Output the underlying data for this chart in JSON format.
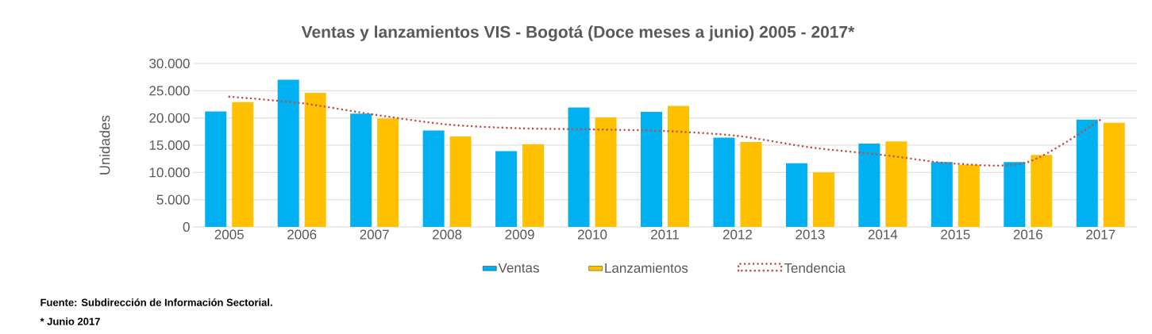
{
  "chart_data": {
    "type": "bar",
    "title": "Ventas y lanzamientos VIS -  Bogotá (Doce meses a junio) 2005 - 2017*",
    "ylabel": "Unidades",
    "categories": [
      "2005",
      "2006",
      "2007",
      "2008",
      "2009",
      "2010",
      "2011",
      "2012",
      "2013",
      "2014",
      "2015",
      "2016",
      "2017"
    ],
    "series": [
      {
        "name": "Ventas",
        "color": "#00b0f0",
        "values": [
          21200,
          27000,
          20800,
          17700,
          13900,
          21900,
          21100,
          16400,
          11700,
          15300,
          11900,
          11900,
          19700
        ]
      },
      {
        "name": "Lanzamientos",
        "color": "#ffc000",
        "values": [
          22900,
          24600,
          19900,
          16600,
          15200,
          20100,
          22200,
          15600,
          10000,
          15700,
          11400,
          13200,
          19100
        ]
      },
      {
        "name": "Tendencia",
        "type": "line",
        "line_style": "dotted",
        "marker": "none",
        "color": "#c0504d",
        "values": [
          23900,
          22700,
          20600,
          18800,
          18100,
          17900,
          17600,
          16700,
          14600,
          13200,
          11600,
          11900,
          19700
        ]
      }
    ],
    "ylim": [
      0,
      30000
    ],
    "yticks": [
      0,
      {
        "value": 5000,
        "label": "5.000"
      },
      {
        "value": 10000,
        "label": "10.000"
      },
      {
        "value": 15000,
        "label": "15.000"
      },
      {
        "value": 20000,
        "label": "20.000"
      },
      {
        "value": 25000,
        "label": "25.000"
      },
      {
        "value": 30000,
        "label": "30.000"
      }
    ],
    "grid": "y",
    "legend": "bottom",
    "annotations": [
      "Fuente: Subdirección de Información Sectorial.",
      "* Junio 2017"
    ]
  }
}
